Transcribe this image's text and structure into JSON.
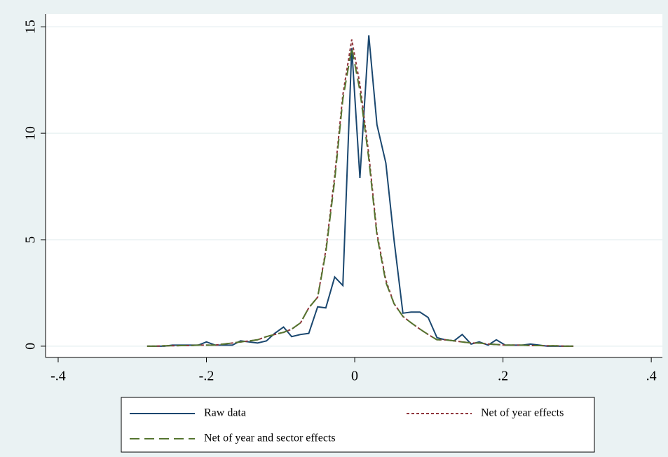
{
  "chart_data": {
    "type": "line",
    "x": [
      -0.28,
      -0.269,
      -0.257,
      -0.246,
      -0.234,
      -0.223,
      -0.211,
      -0.2,
      -0.188,
      -0.177,
      -0.165,
      -0.154,
      -0.142,
      -0.131,
      -0.119,
      -0.108,
      -0.096,
      -0.085,
      -0.073,
      -0.062,
      -0.05,
      -0.039,
      -0.027,
      -0.016,
      -0.004,
      0.007,
      0.019,
      0.03,
      0.042,
      0.053,
      0.065,
      0.076,
      0.088,
      0.099,
      0.111,
      0.122,
      0.134,
      0.145,
      0.157,
      0.168,
      0.18,
      0.191,
      0.203,
      0.214,
      0.226,
      0.237,
      0.249,
      0.26,
      0.272,
      0.283,
      0.295
    ],
    "series": [
      {
        "name": "Raw data",
        "color": "#1a476f",
        "dash": "solid",
        "values": [
          0,
          0,
          0,
          0.05,
          0.05,
          0.05,
          0.05,
          0.2,
          0.05,
          0.05,
          0.05,
          0.25,
          0.2,
          0.15,
          0.25,
          0.6,
          0.9,
          0.45,
          0.55,
          0.6,
          1.85,
          1.8,
          3.25,
          2.85,
          14,
          7.9,
          14.6,
          10.4,
          8.6,
          5,
          1.55,
          1.6,
          1.6,
          1.35,
          0.4,
          0.3,
          0.25,
          0.55,
          0.1,
          0.2,
          0.05,
          0.3,
          0.05,
          0.05,
          0.05,
          0.1,
          0.05,
          0,
          0,
          0,
          0
        ]
      },
      {
        "name": "Net of year effects",
        "color": "#90353b",
        "dash": "short",
        "values": [
          0,
          0,
          0.02,
          0.02,
          0.03,
          0.03,
          0.05,
          0.05,
          0.05,
          0.1,
          0.15,
          0.2,
          0.25,
          0.3,
          0.45,
          0.55,
          0.65,
          0.8,
          1.1,
          1.8,
          2.3,
          4.5,
          8,
          11.8,
          14.4,
          12.3,
          9,
          5.3,
          3.1,
          2,
          1.4,
          1.1,
          0.8,
          0.55,
          0.3,
          0.3,
          0.25,
          0.2,
          0.15,
          0.15,
          0.1,
          0.08,
          0.05,
          0.05,
          0.05,
          0.03,
          0.03,
          0.02,
          0.02,
          0,
          0
        ]
      },
      {
        "name": "Net of year and sector effects",
        "color": "#55752f",
        "dash": "long",
        "values": [
          0,
          0,
          0.02,
          0.02,
          0.03,
          0.03,
          0.05,
          0.05,
          0.05,
          0.1,
          0.15,
          0.2,
          0.25,
          0.3,
          0.45,
          0.55,
          0.65,
          0.8,
          1.1,
          1.8,
          2.3,
          4.4,
          7.8,
          11.6,
          14,
          12,
          8.8,
          5.2,
          3,
          2,
          1.4,
          1.1,
          0.8,
          0.55,
          0.3,
          0.3,
          0.25,
          0.2,
          0.15,
          0.15,
          0.1,
          0.08,
          0.05,
          0.05,
          0.05,
          0.03,
          0.03,
          0.02,
          0.02,
          0,
          0
        ]
      }
    ],
    "xlim": [
      -0.417,
      0.415
    ],
    "ylim": [
      -0.53,
      15.6
    ],
    "xticks": [
      {
        "value": -0.4,
        "label": "-.4"
      },
      {
        "value": -0.2,
        "label": "-.2"
      },
      0,
      {
        "value": 0.2,
        "label": ".2"
      },
      {
        "value": 0.4,
        "label": ".4"
      }
    ],
    "yticks": [
      0,
      5,
      10,
      15
    ],
    "grid": true,
    "legend": "bottom"
  }
}
